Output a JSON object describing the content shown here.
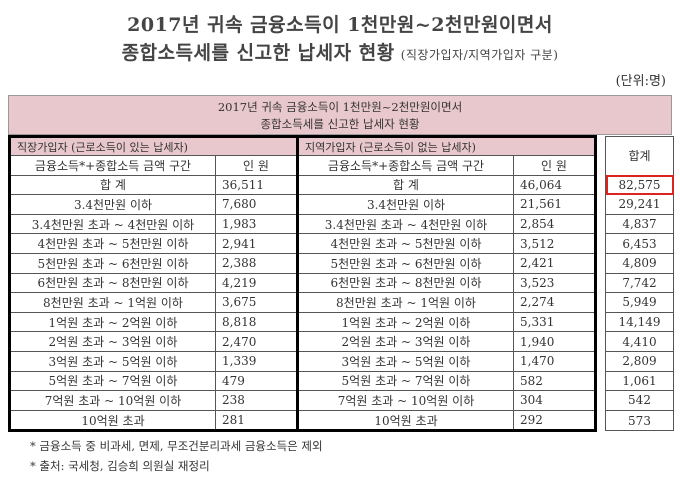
{
  "title_line1": "2017년 귀속 금융소득이 1천만원~2천만원이면서",
  "title_line2": "종합소득세를 신고한 납세자 현황",
  "title_line2_sub": "(직장가입자/지역가입자 구분)",
  "unit": "(단위:명)",
  "banner_line1": "2017년 귀속 금융소득이 1천만원~2천만원이면서",
  "banner_line2": "종합소득세를 신고한 납세자 현황",
  "group_left": "직장가입자 (근로소득이 있는 납세자)",
  "group_right": "지역가입자 (근로소득이 없는 납세자)",
  "col_range": "금융소득*+종합소득 금액 구간",
  "col_people": "인 원",
  "col_total": "합계",
  "rows": [
    {
      "label": "합 계",
      "left": "36,511",
      "right": "46,064",
      "total": "82,575"
    },
    {
      "label": "3.4천만원 이하",
      "left": "7,680",
      "right": "21,561",
      "total": "29,241"
    },
    {
      "label": "3.4천만원 초과 ~ 4천만원 이하",
      "left": "1,983",
      "right": "2,854",
      "total": "4,837"
    },
    {
      "label": "4천만원 초과 ~ 5천만원 이하",
      "left": "2,941",
      "right": "3,512",
      "total": "6,453"
    },
    {
      "label": "5천만원 초과 ~ 6천만원 이하",
      "left": "2,388",
      "right": "2,421",
      "total": "4,809"
    },
    {
      "label": "6천만원 초과 ~ 8천만원 이하",
      "left": "4,219",
      "right": "3,523",
      "total": "7,742"
    },
    {
      "label": "8천만원 초과 ~ 1억원 이하",
      "left": "3,675",
      "right": "2,274",
      "total": "5,949"
    },
    {
      "label": "1억원 초과 ~ 2억원 이하",
      "left": "8,818",
      "right": "5,331",
      "total": "14,149"
    },
    {
      "label": "2억원 초과 ~ 3억원 이하",
      "left": "2,470",
      "right": "1,940",
      "total": "4,410"
    },
    {
      "label": "3억원 초과 ~ 5억원 이하",
      "left": "1,339",
      "right": "1,470",
      "total": "2,809"
    },
    {
      "label": "5억원 초과 ~ 7억원 이하",
      "left": "479",
      "right": "582",
      "total": "1,061"
    },
    {
      "label": "7억원 초과 ~ 10억원 이하",
      "left": "238",
      "right": "304",
      "total": "542"
    },
    {
      "label": "10억원 초과",
      "left": "281",
      "right": "292",
      "total": "573"
    }
  ],
  "note1": "* 금융소득 중 비과세, 면제, 무조건분리과세 금융소득은 제외",
  "note2": "* 출처: 국세청, 김승희 의원실 재정리",
  "colors": {
    "header_pink": "#e8c8cc",
    "highlight": "#d22222"
  }
}
